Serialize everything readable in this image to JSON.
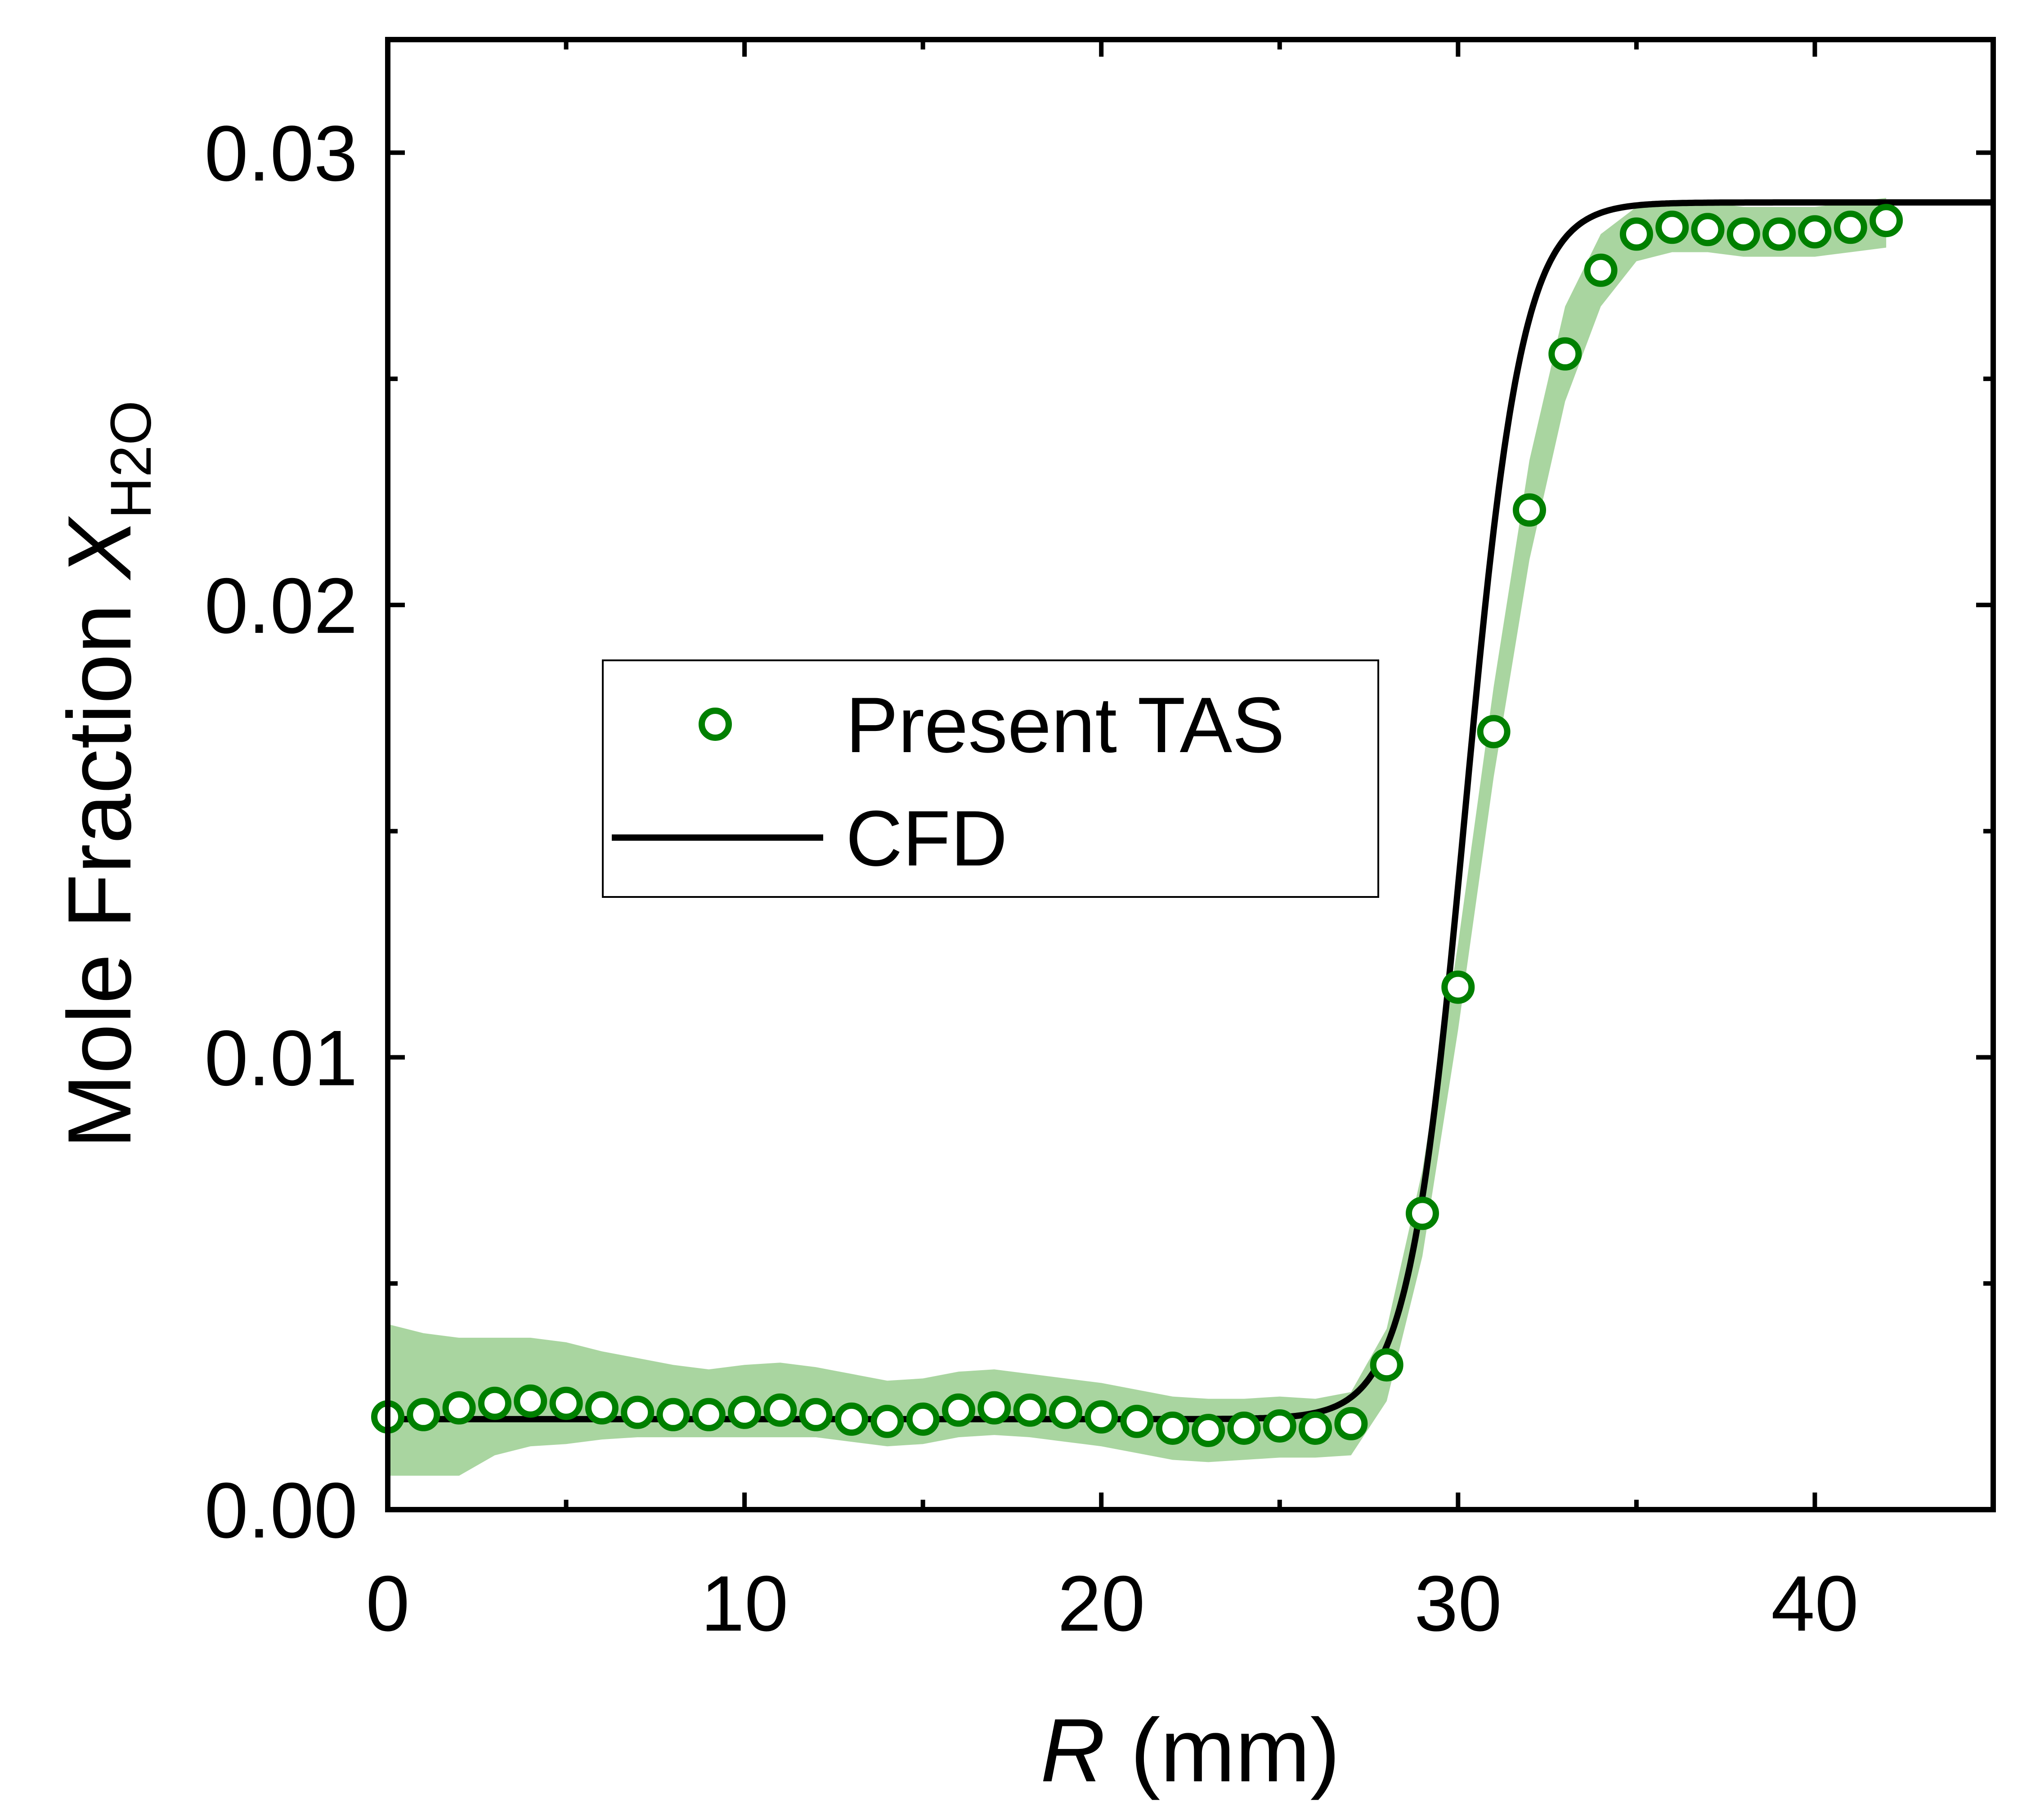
{
  "chart_data": {
    "type": "scatter",
    "title": "",
    "xlabel": {
      "symbol": "R",
      "unit": " (mm)"
    },
    "ylabel": {
      "main": "Mole Fraction ",
      "symbol": "X",
      "subscript": "H2O"
    },
    "xlim": [
      0,
      45
    ],
    "ylim": [
      0,
      0.0325
    ],
    "xticks": [
      0,
      10,
      20,
      30,
      40
    ],
    "xtick_labels": [
      "0",
      "10",
      "20",
      "30",
      "40"
    ],
    "yticks": [
      0,
      0.01,
      0.02,
      0.03
    ],
    "ytick_labels": [
      "0.00",
      "0.01",
      "0.02",
      "0.03"
    ],
    "legend_position": "center-left",
    "series": [
      {
        "name": "Present TAS",
        "kind": "markers",
        "color": "#008000",
        "x": [
          0,
          1,
          2,
          3,
          4,
          5,
          6,
          7,
          8,
          9,
          10,
          11,
          12,
          13,
          14,
          15,
          16,
          17,
          18,
          19,
          20,
          21,
          22,
          23,
          24,
          25,
          26,
          27,
          28,
          29,
          30,
          31,
          32,
          33,
          34,
          35,
          36,
          37,
          38,
          39,
          40,
          41,
          42
        ],
        "y": [
          0.00205,
          0.0021,
          0.00225,
          0.00235,
          0.0024,
          0.00235,
          0.00225,
          0.00215,
          0.0021,
          0.0021,
          0.00215,
          0.0022,
          0.0021,
          0.002,
          0.00195,
          0.002,
          0.0022,
          0.00225,
          0.0022,
          0.00215,
          0.00205,
          0.00195,
          0.0018,
          0.00175,
          0.0018,
          0.00185,
          0.0018,
          0.0019,
          0.0032,
          0.00655,
          0.01155,
          0.0172,
          0.0221,
          0.02555,
          0.0274,
          0.0282,
          0.02835,
          0.0283,
          0.0282,
          0.0282,
          0.02825,
          0.02835,
          0.0285
        ]
      },
      {
        "name": "Present TAS uncertainty",
        "kind": "band",
        "color": "#a9d5a0",
        "x": [
          0,
          1,
          2,
          3,
          4,
          5,
          6,
          7,
          8,
          9,
          10,
          11,
          12,
          13,
          14,
          15,
          16,
          17,
          18,
          19,
          20,
          21,
          22,
          23,
          24,
          25,
          26,
          27,
          28,
          29,
          30,
          31,
          32,
          33,
          34,
          35,
          36,
          37,
          38,
          39,
          40,
          41,
          42
        ],
        "lower": [
          0.00075,
          0.00075,
          0.00075,
          0.0012,
          0.0014,
          0.00145,
          0.00155,
          0.0016,
          0.0016,
          0.0016,
          0.0016,
          0.0016,
          0.0016,
          0.0015,
          0.0014,
          0.00145,
          0.0016,
          0.00165,
          0.0016,
          0.0015,
          0.0014,
          0.00125,
          0.0011,
          0.00105,
          0.0011,
          0.00115,
          0.00115,
          0.0012,
          0.0024,
          0.0056,
          0.0106,
          0.0162,
          0.021,
          0.0245,
          0.0266,
          0.0276,
          0.0278,
          0.0278,
          0.0277,
          0.0277,
          0.0277,
          0.0278,
          0.0279
        ],
        "upper": [
          0.0041,
          0.0039,
          0.0038,
          0.0038,
          0.0038,
          0.0037,
          0.0035,
          0.00335,
          0.0032,
          0.0031,
          0.0032,
          0.00325,
          0.00315,
          0.003,
          0.00285,
          0.0029,
          0.00305,
          0.0031,
          0.003,
          0.0029,
          0.0028,
          0.00265,
          0.0025,
          0.00245,
          0.00245,
          0.0025,
          0.00245,
          0.0026,
          0.004,
          0.0075,
          0.0125,
          0.0182,
          0.0232,
          0.0266,
          0.0282,
          0.0288,
          0.0289,
          0.0289,
          0.0288,
          0.0288,
          0.0288,
          0.0289,
          0.029
        ]
      },
      {
        "name": "CFD",
        "kind": "line",
        "color": "#000000",
        "model": "sigmoid",
        "low": 0.002,
        "high": 0.0289,
        "center_mm": 30.2,
        "width_mm": 0.8,
        "x_range": [
          0,
          45
        ]
      }
    ]
  },
  "legend": [
    {
      "label": "Present TAS",
      "marker": "circle"
    },
    {
      "label": "CFD",
      "marker": "line"
    }
  ]
}
